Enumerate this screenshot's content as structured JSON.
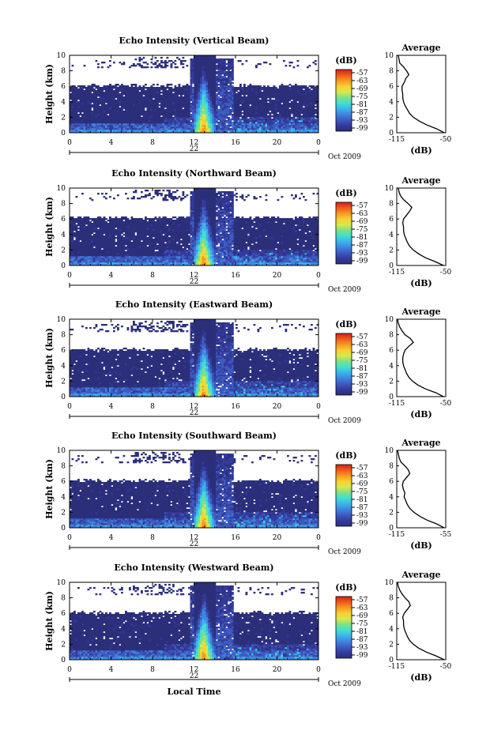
{
  "figure": {
    "xlabel": "Local Time",
    "colorbar_label": "(dB)",
    "colorbar_ticks": [
      "-57",
      "-63",
      "-69",
      "-75",
      "-81",
      "-87",
      "-93",
      "-99"
    ],
    "date_day": "22",
    "date_month_year": "Oct 2009",
    "profile_title": "Average",
    "profile_xlabel": "(dB)",
    "profile_xticks": [
      "-115",
      "-50"
    ],
    "colormap": [
      "#2b2f7a",
      "#343b9a",
      "#3d5bc0",
      "#3f86e0",
      "#3cb4ee",
      "#40e0d0",
      "#7de08a",
      "#d8e84a",
      "#f8d030",
      "#f59a22",
      "#ef5a1c",
      "#d0201a"
    ]
  },
  "chart_data": [
    {
      "type": "heatmap",
      "title": "Echo Intensity (Vertical Beam)",
      "ylabel": "Height (km)",
      "xlabel": "Local Time",
      "x_ticks": [
        "0",
        "4",
        "8",
        "12",
        "16",
        "20",
        "0"
      ],
      "y_ticks": [
        "0",
        "2",
        "4",
        "6",
        "8",
        "10"
      ],
      "xlim": [
        0,
        24
      ],
      "ylim": [
        0,
        10
      ],
      "zlim": [
        -99,
        -57
      ],
      "cloud_top_km": 6.2,
      "upper_layer_km": [
        8.5,
        9.5
      ],
      "convective_core_hours": [
        12.3,
        13.4
      ],
      "profile": {
        "title": "Average",
        "xlabel": "(dB)",
        "xlim": [
          -115,
          -50
        ],
        "height_km": [
          0,
          0.5,
          1,
          1.5,
          2,
          2.5,
          3,
          3.5,
          4,
          4.5,
          5,
          5.5,
          6,
          6.5,
          7,
          7.5,
          8,
          8.5,
          9,
          9.5,
          10
        ],
        "value_db": [
          -52,
          -62,
          -75,
          -85,
          -93,
          -98,
          -101,
          -104,
          -106,
          -107,
          -107,
          -108,
          -108,
          -105,
          -103,
          -99,
          -102,
          -106,
          -111,
          -112,
          -113
        ]
      }
    },
    {
      "type": "heatmap",
      "title": "Echo Intensity (Northward Beam)",
      "ylabel": "Height (km)",
      "xlabel": "Local Time",
      "x_ticks": [
        "0",
        "4",
        "8",
        "12",
        "16",
        "20",
        "0"
      ],
      "y_ticks": [
        "0",
        "2",
        "4",
        "6",
        "8",
        "10"
      ],
      "xlim": [
        0,
        24
      ],
      "ylim": [
        0,
        10
      ],
      "zlim": [
        -99,
        -57
      ],
      "cloud_top_km": 6.3,
      "upper_layer_km": [
        8.5,
        9.5
      ],
      "convective_core_hours": [
        12.3,
        13.4
      ],
      "profile": {
        "title": "Average",
        "xlabel": "(dB)",
        "xlim": [
          -115,
          -50
        ],
        "height_km": [
          0,
          0.5,
          1,
          1.5,
          2,
          2.5,
          3,
          3.5,
          4,
          4.5,
          5,
          5.5,
          6,
          6.5,
          7,
          7.5,
          8,
          8.5,
          9,
          9.5,
          10
        ],
        "value_db": [
          -53,
          -64,
          -77,
          -86,
          -93,
          -98,
          -101,
          -103,
          -105,
          -106,
          -106,
          -107,
          -106,
          -102,
          -98,
          -95,
          -100,
          -106,
          -110,
          -112,
          -113
        ]
      }
    },
    {
      "type": "heatmap",
      "title": "Echo Intensity (Eastward Beam)",
      "ylabel": "Height (km)",
      "xlabel": "Local Time",
      "x_ticks": [
        "0",
        "4",
        "8",
        "12",
        "16",
        "20",
        "0"
      ],
      "y_ticks": [
        "0",
        "2",
        "4",
        "6",
        "8",
        "10"
      ],
      "xlim": [
        0,
        24
      ],
      "ylim": [
        0,
        10
      ],
      "zlim": [
        -99,
        -57
      ],
      "cloud_top_km": 6.2,
      "upper_layer_km": [
        8.5,
        9.5
      ],
      "convective_core_hours": [
        12.3,
        13.4
      ],
      "profile": {
        "title": "Average",
        "xlabel": "(dB)",
        "xlim": [
          -115,
          -50
        ],
        "height_km": [
          0,
          0.5,
          1,
          1.5,
          2,
          2.5,
          3,
          3.5,
          4,
          4.5,
          5,
          5.5,
          6,
          6.5,
          7,
          7.5,
          8,
          8.5,
          9,
          9.5,
          10
        ],
        "value_db": [
          -53,
          -63,
          -77,
          -87,
          -94,
          -99,
          -102,
          -104,
          -106,
          -107,
          -107,
          -106,
          -104,
          -99,
          -93,
          -97,
          -104,
          -108,
          -111,
          -113,
          -114
        ]
      }
    },
    {
      "type": "heatmap",
      "title": "Echo Intensity (Southward Beam)",
      "ylabel": "Height (km)",
      "xlabel": "Local Time",
      "x_ticks": [
        "0",
        "4",
        "8",
        "12",
        "16",
        "20",
        "0"
      ],
      "y_ticks": [
        "0",
        "2",
        "4",
        "6",
        "8",
        "10"
      ],
      "xlim": [
        0,
        24
      ],
      "ylim": [
        0,
        10
      ],
      "zlim": [
        -99,
        -57
      ],
      "cloud_top_km": 6.2,
      "upper_layer_km": [
        8.5,
        9.5
      ],
      "convective_core_hours": [
        12.3,
        13.4
      ],
      "profile": {
        "title": "Average",
        "xlabel": "(dB)",
        "xlim": [
          -115,
          -55
        ],
        "height_km": [
          0,
          0.5,
          1,
          1.5,
          2,
          2.5,
          3,
          3.5,
          4,
          4.5,
          5,
          5.5,
          6,
          6.5,
          7,
          7.5,
          8,
          8.5,
          9,
          9.5,
          10
        ],
        "value_db": [
          -57,
          -66,
          -78,
          -87,
          -94,
          -99,
          -102,
          -104,
          -106,
          -105,
          -107,
          -108,
          -107,
          -103,
          -99,
          -101,
          -105,
          -110,
          -112,
          -113,
          -114
        ]
      }
    },
    {
      "type": "heatmap",
      "title": "Echo Intensity (Westward Beam)",
      "ylabel": "Height (km)",
      "xlabel": "Local Time",
      "x_ticks": [
        "0",
        "4",
        "8",
        "12",
        "16",
        "20",
        "0"
      ],
      "y_ticks": [
        "0",
        "2",
        "4",
        "6",
        "8",
        "10"
      ],
      "xlim": [
        0,
        24
      ],
      "ylim": [
        0,
        10
      ],
      "zlim": [
        -99,
        -57
      ],
      "cloud_top_km": 6.2,
      "upper_layer_km": [
        8.5,
        9.5
      ],
      "convective_core_hours": [
        12.3,
        13.4
      ],
      "profile": {
        "title": "Average",
        "xlabel": "(dB)",
        "xlim": [
          -115,
          -50
        ],
        "height_km": [
          0,
          0.5,
          1,
          1.5,
          2,
          2.5,
          3,
          3.5,
          4,
          4.5,
          5,
          5.5,
          6,
          6.5,
          7,
          7.5,
          8,
          8.5,
          9,
          9.5,
          10
        ],
        "value_db": [
          -52,
          -63,
          -76,
          -86,
          -93,
          -98,
          -101,
          -103,
          -105,
          -106,
          -106,
          -107,
          -105,
          -101,
          -97,
          -99,
          -104,
          -108,
          -111,
          -113,
          -114
        ]
      }
    }
  ]
}
